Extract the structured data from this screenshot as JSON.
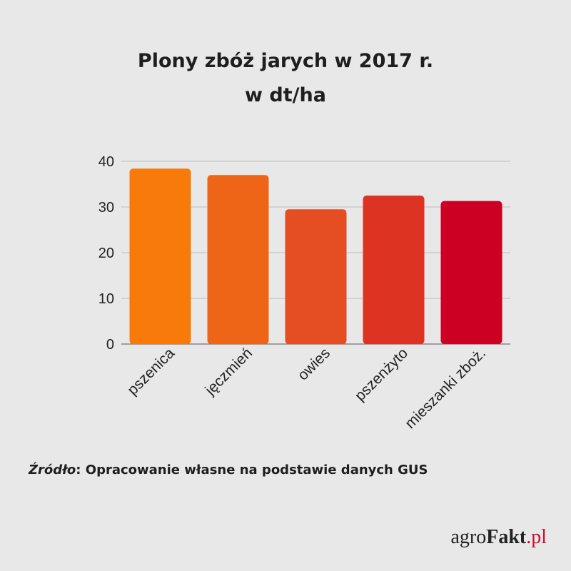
{
  "chart_data": {
    "type": "bar",
    "title": [
      "Plony zbóż jarych w 2017 r.",
      "w dt/ha"
    ],
    "categories": [
      "pszenica",
      "jęczmień",
      "owies",
      "pszenżyto",
      "mieszanki zboż."
    ],
    "values": [
      38.4,
      37.0,
      29.5,
      32.5,
      31.3
    ],
    "colors": [
      "#f77a0b",
      "#ef6518",
      "#e54d22",
      "#dd3322",
      "#cc0022"
    ],
    "ylim": [
      0,
      40
    ],
    "yticks": [
      0,
      10,
      20,
      30,
      40
    ],
    "grid": true
  },
  "source": {
    "label": "Źródło",
    "separator": ":",
    "text": " Opracowanie własne na podstawie danych GUS"
  },
  "brand": {
    "prefix": "agro",
    "bold": "Fakt",
    "tld": ".pl"
  }
}
